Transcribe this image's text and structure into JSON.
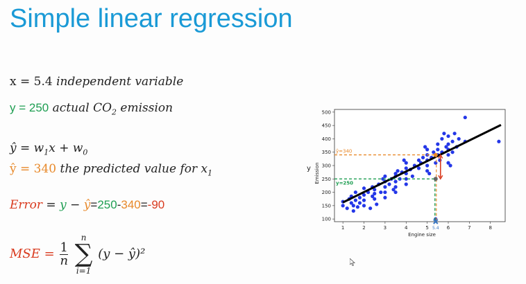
{
  "title": "Simple linear regression",
  "eq1": {
    "lhs": "x = 5.4",
    "desc": "independent variable"
  },
  "eq2": {
    "lhs": "y = 250",
    "desc": "actual CO",
    "sub": "2",
    "desc2": " emission"
  },
  "eq3": {
    "text": "ŷ = w",
    "s1": "1",
    "mid": "x + w",
    "s2": "0"
  },
  "eq4": {
    "lhs": "ŷ = 340",
    "desc": "the predicted value for x",
    "sub": "1"
  },
  "eq5": {
    "label": "Error",
    "eq": " = ",
    "y": "y",
    "minus": " − ",
    "yhat": "ŷ",
    "eq2": "=",
    "v1": "250",
    "d": "-",
    "v2": "340",
    "eq3": "=",
    "v3": "-90"
  },
  "mse": {
    "label": "MSE = ",
    "num": "1",
    "den": "n",
    "top": "n",
    "sigma": "∑",
    "bottom": "i=1",
    "body": "(y − ŷ)²"
  },
  "chart_data": {
    "type": "scatter",
    "xlabel": "Engine size",
    "ylabel": "Emission",
    "outer_ylabel": "y",
    "xlim": [
      0.6,
      8.7
    ],
    "ylim": [
      90,
      510
    ],
    "xticks": [
      1,
      2,
      3,
      4,
      5,
      6,
      7,
      8
    ],
    "yticks": [
      100,
      150,
      200,
      250,
      300,
      350,
      400,
      450,
      500
    ],
    "regression_line": {
      "x": [
        1,
        8.5
      ],
      "y": [
        162,
        452
      ]
    },
    "point_color": "#2437e8",
    "annotations": [
      {
        "label": "ŷ=340",
        "y": 340,
        "color": "#e8892a"
      },
      {
        "label": "y=250",
        "y": 250,
        "color": "#1e9e52"
      },
      {
        "label": "5.4",
        "x": 5.4,
        "color": "#3a78c4"
      }
    ],
    "points": [
      [
        1.0,
        150
      ],
      [
        1.0,
        165
      ],
      [
        1.2,
        140
      ],
      [
        1.3,
        175
      ],
      [
        1.4,
        160
      ],
      [
        1.4,
        185
      ],
      [
        1.5,
        150
      ],
      [
        1.6,
        170
      ],
      [
        1.6,
        200
      ],
      [
        1.8,
        180
      ],
      [
        1.8,
        160
      ],
      [
        2.0,
        190
      ],
      [
        2.0,
        170
      ],
      [
        2.0,
        215
      ],
      [
        2.0,
        150
      ],
      [
        2.2,
        200
      ],
      [
        2.4,
        185
      ],
      [
        2.4,
        220
      ],
      [
        2.5,
        210
      ],
      [
        2.5,
        175
      ],
      [
        2.5,
        195
      ],
      [
        2.7,
        230
      ],
      [
        2.8,
        200
      ],
      [
        3.0,
        240
      ],
      [
        3.0,
        220
      ],
      [
        3.0,
        200
      ],
      [
        3.0,
        180
      ],
      [
        3.0,
        260
      ],
      [
        3.2,
        230
      ],
      [
        3.3,
        250
      ],
      [
        3.5,
        260
      ],
      [
        3.5,
        240
      ],
      [
        3.5,
        220
      ],
      [
        3.5,
        270
      ],
      [
        3.5,
        200
      ],
      [
        3.6,
        280
      ],
      [
        3.7,
        250
      ],
      [
        3.8,
        275
      ],
      [
        4.0,
        270
      ],
      [
        4.0,
        290
      ],
      [
        4.0,
        250
      ],
      [
        4.0,
        230
      ],
      [
        4.0,
        310
      ],
      [
        4.2,
        285
      ],
      [
        4.4,
        300
      ],
      [
        4.6,
        290
      ],
      [
        4.6,
        320
      ],
      [
        4.7,
        310
      ],
      [
        4.8,
        330
      ],
      [
        5.0,
        320
      ],
      [
        5.0,
        300
      ],
      [
        5.0,
        340
      ],
      [
        5.0,
        280
      ],
      [
        5.0,
        360
      ],
      [
        5.2,
        330
      ],
      [
        5.3,
        350
      ],
      [
        5.4,
        310
      ],
      [
        5.5,
        360
      ],
      [
        5.5,
        340
      ],
      [
        5.5,
        380
      ],
      [
        5.6,
        320
      ],
      [
        5.7,
        400
      ],
      [
        5.7,
        350
      ],
      [
        5.8,
        420
      ],
      [
        5.9,
        370
      ],
      [
        6.0,
        380
      ],
      [
        6.0,
        340
      ],
      [
        6.0,
        360
      ],
      [
        6.0,
        310
      ],
      [
        6.0,
        410
      ],
      [
        6.2,
        350
      ],
      [
        6.2,
        390
      ],
      [
        6.4,
        370
      ],
      [
        6.5,
        400
      ],
      [
        6.8,
        390
      ],
      [
        6.8,
        480
      ],
      [
        8.4,
        390
      ],
      [
        5.4,
        100
      ],
      [
        1.5,
        130
      ],
      [
        2.3,
        140
      ],
      [
        3.4,
        210
      ],
      [
        4.3,
        260
      ],
      [
        5.1,
        270
      ],
      [
        6.1,
        300
      ],
      [
        6.3,
        420
      ],
      [
        1.7,
        145
      ],
      [
        2.9,
        250
      ],
      [
        4.9,
        370
      ],
      [
        3.9,
        320
      ],
      [
        2.6,
        155
      ]
    ]
  }
}
